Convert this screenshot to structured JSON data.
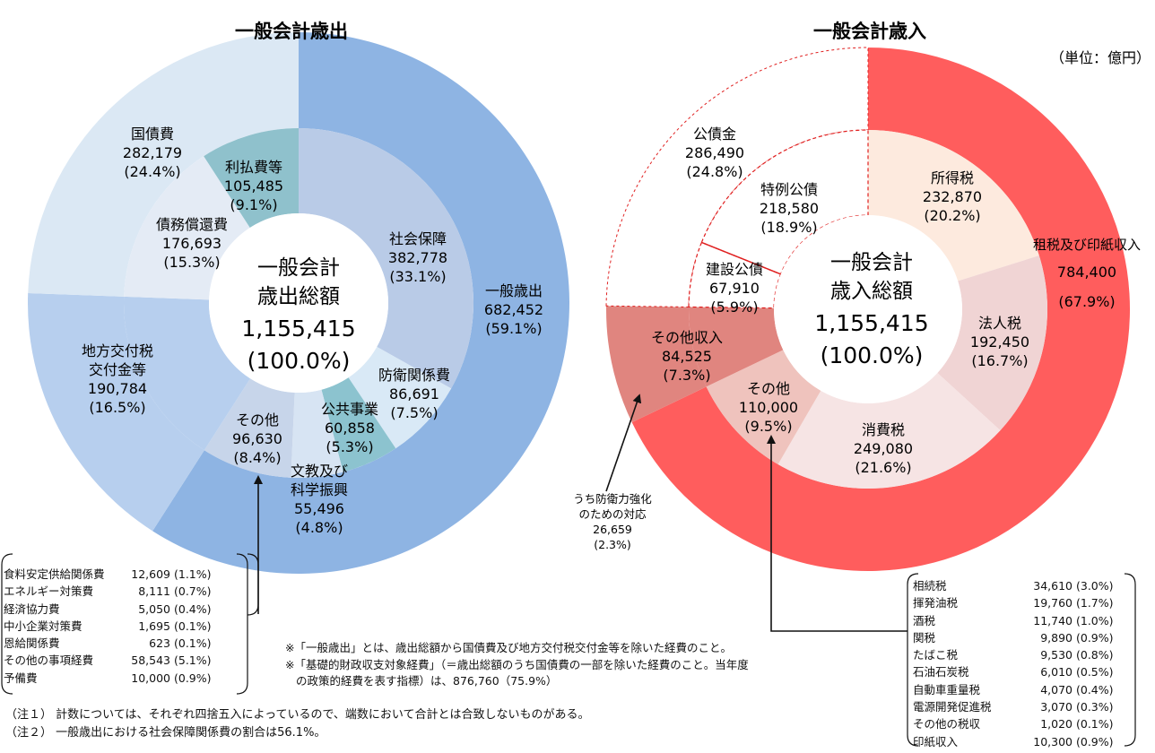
{
  "unit_label": "（単位：億円）",
  "chart_data": [
    {
      "type": "pie",
      "title": "一般会計歳出",
      "center": {
        "line1": "一般会計",
        "line2": "歳出総額",
        "value": "1,155,415",
        "pct": "(100.0%)"
      },
      "outer_ring": [
        {
          "key": "ippan",
          "name": "一般歳出",
          "value": 682452,
          "value_label": "682,452",
          "pct": "(59.1%)",
          "color": "#8eb4e3"
        },
        {
          "key": "chiho",
          "name": "地方交付税交付金等",
          "name_lines": [
            "地方交付税",
            "交付金等"
          ],
          "value": 190784,
          "value_label": "190,784",
          "pct": "(16.5%)",
          "color": "#b7cfee"
        },
        {
          "key": "kokusai",
          "name": "国債費",
          "value": 282179,
          "value_label": "282,179",
          "pct": "(24.4%)",
          "color": "#dbe8f4"
        }
      ],
      "inner_ring": [
        {
          "key": "shakai",
          "name": "社会保障",
          "value": 382778,
          "value_label": "382,778",
          "pct": "(33.1%)",
          "color": "#b9cbe7"
        },
        {
          "key": "boei",
          "name": "防衛関係費",
          "value": 86691,
          "value_label": "86,691",
          "pct": "(7.5%)",
          "color": "#d9e9f6"
        },
        {
          "key": "kokyo",
          "name": "公共事業",
          "value": 60858,
          "value_label": "60,858",
          "pct": "(5.3%)",
          "color": "#8cc3cf"
        },
        {
          "key": "bunkyo",
          "name": "文教及び科学振興",
          "name_lines": [
            "文教及び",
            "科学振興"
          ],
          "value": 55496,
          "value_label": "55,496",
          "pct": "(4.8%)",
          "color": "#d7e4f3"
        },
        {
          "key": "sonota",
          "name": "その他",
          "value": 96630,
          "value_label": "96,630",
          "pct": "(8.4%)",
          "color": "#c7d5ea"
        },
        {
          "key": "chiho_in",
          "name": "地方交付税交付金等",
          "value": 190784,
          "color": "#b7cfee"
        },
        {
          "key": "shokan",
          "name": "債務償還費",
          "value": 176693,
          "value_label": "176,693",
          "pct": "(15.3%)",
          "color": "#e4ebf5"
        },
        {
          "key": "rihara",
          "name": "利払費等",
          "value": 105485,
          "value_label": "105,485",
          "pct": "(9.1%)",
          "color": "#8fc1cc"
        }
      ],
      "breakdown_of": "その他",
      "breakdown": [
        {
          "name": "食料安定供給関係費",
          "value": "12,609",
          "pct": "(1.1%)"
        },
        {
          "name": "エネルギー対策費",
          "value": "8,111",
          "pct": "(0.7%)"
        },
        {
          "name": "経済協力費",
          "value": "5,050",
          "pct": "(0.4%)"
        },
        {
          "name": "中小企業対策費",
          "value": "1,695",
          "pct": "(0.1%)"
        },
        {
          "name": "恩給関係費",
          "value": "623",
          "pct": "(0.1%)"
        },
        {
          "name": "その他の事項経費",
          "value": "58,543",
          "pct": "(5.1%)"
        },
        {
          "name": "予備費",
          "value": "10,000",
          "pct": "(0.9%)"
        }
      ]
    },
    {
      "type": "pie",
      "title": "一般会計歳入",
      "center": {
        "line1": "一般会計",
        "line2": "歳入総額",
        "value": "1,155,415",
        "pct": "(100.0%)"
      },
      "outer_ring": [
        {
          "key": "sozei",
          "name": "租税及び印紙収入",
          "value": 784400,
          "value_label": "784,400",
          "pct": "(67.9%)",
          "color": "#ff5d5d"
        },
        {
          "key": "sonota_shunyu",
          "name": "その他収入",
          "value": 84525,
          "value_label": "84,525",
          "pct": "(7.3%)",
          "color": "#e0857f"
        },
        {
          "key": "kosaikin",
          "name": "公債金",
          "value": 286490,
          "value_label": "286,490",
          "pct": "(24.8%)",
          "color": "#ffffff"
        }
      ],
      "inner_ring": [
        {
          "key": "shotoku",
          "name": "所得税",
          "value": 232870,
          "value_label": "232,870",
          "pct": "(20.2%)",
          "color": "#fdeade"
        },
        {
          "key": "hojin",
          "name": "法人税",
          "value": 192450,
          "value_label": "192,450",
          "pct": "(16.7%)",
          "color": "#f0d4d4"
        },
        {
          "key": "shohi",
          "name": "消費税",
          "value": 249080,
          "value_label": "249,080",
          "pct": "(21.6%)",
          "color": "#f6e4e4"
        },
        {
          "key": "sonota_zei",
          "name": "その他",
          "value": 110000,
          "value_label": "110,000",
          "pct": "(9.5%)",
          "color": "#efc3bd"
        },
        {
          "key": "sonota_shunyu_in",
          "name": "その他収入",
          "value": 84525,
          "color": "#e0857f"
        },
        {
          "key": "kensetsu",
          "name": "建設公債",
          "value": 67910,
          "value_label": "67,910",
          "pct": "(5.9%)",
          "color": "#ffffff"
        },
        {
          "key": "tokurei",
          "name": "特例公債",
          "value": 218580,
          "value_label": "218,580",
          "pct": "(18.9%)",
          "color": "#ffffff"
        }
      ],
      "defense_note": {
        "lines": [
          "うち防衛力強化",
          "のための対応"
        ],
        "value": "26,659",
        "pct": "(2.3%)"
      },
      "breakdown_of": "その他",
      "breakdown": [
        {
          "name": "相続税",
          "value": "34,610",
          "pct": "(3.0%)"
        },
        {
          "name": "揮発油税",
          "value": "19,760",
          "pct": "(1.7%)"
        },
        {
          "name": "酒税",
          "value": "11,740",
          "pct": "(1.0%)"
        },
        {
          "name": "関税",
          "value": "9,890",
          "pct": "(0.9%)"
        },
        {
          "name": "たばこ税",
          "value": "9,530",
          "pct": "(0.8%)"
        },
        {
          "name": "石油石炭税",
          "value": "6,010",
          "pct": "(0.5%)"
        },
        {
          "name": "自動車重量税",
          "value": "4,070",
          "pct": "(0.4%)"
        },
        {
          "name": "電源開発促進税",
          "value": "3,070",
          "pct": "(0.3%)"
        },
        {
          "name": "その他の税収",
          "value": "1,020",
          "pct": "(0.1%)"
        },
        {
          "name": "印紙収入",
          "value": "10,300",
          "pct": "(0.9%)"
        }
      ]
    }
  ],
  "footnotes": {
    "star1": "※「一般歳出」とは、歳出総額から国債費及び地方交付税交付金等を除いた経費のこと。",
    "star2_line1": "※「基礎的財政収支対象経費」（＝歳出総額のうち国債費の一部を除いた経費のこと。当年度",
    "star2_line2": "の政策的経費を表す指標）は、876,760（75.9%）",
    "note1": "（注１） 計数については、それぞれ四捨五入によっているので、端数において合計とは合致しないものがある。",
    "note2": "（注２） 一般歳出における社会保障関係費の割合は56.1%。"
  }
}
